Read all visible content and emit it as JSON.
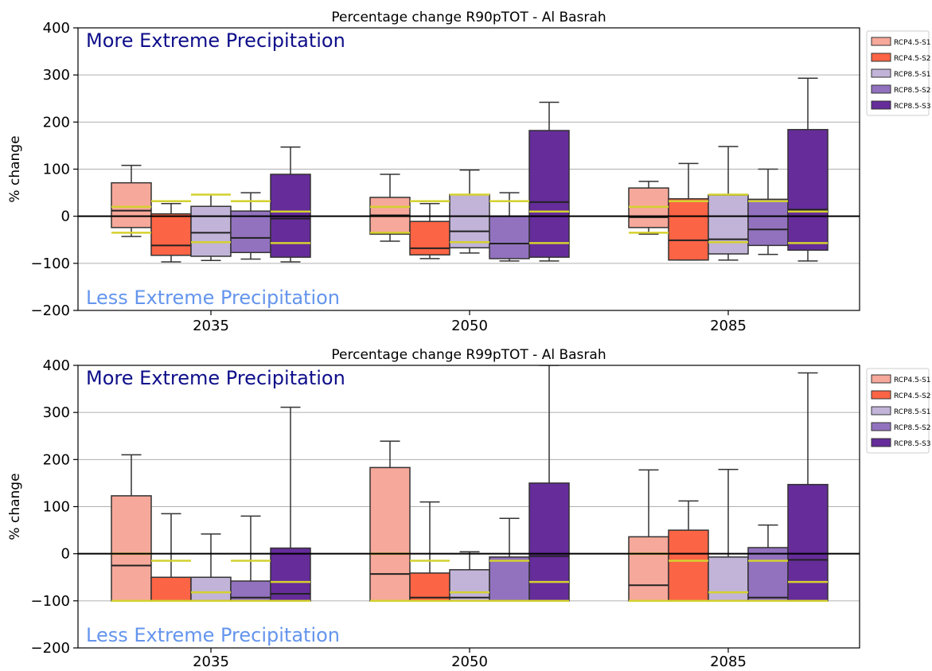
{
  "chart_data": [
    {
      "type": "box",
      "title": "Percentage change R90pTOT - Al Basrah",
      "ylabel": "% change",
      "xlabel": "",
      "ylim": [
        -200,
        400
      ],
      "yticks": [
        -200,
        -100,
        0,
        100,
        200,
        300,
        400
      ],
      "grid": "y",
      "legend_position": "right",
      "categories": [
        "2035",
        "2050",
        "2085"
      ],
      "annotations": {
        "top": "More Extreme Precipitation",
        "bottom": "Less Extreme Precipitation"
      },
      "series": [
        {
          "name": "RCP4.5-S1",
          "color": "#f6a89a",
          "boxes": [
            {
              "whislo": -43,
              "q1": -24,
              "med": 12,
              "q3": 71,
              "whishi": 108,
              "mean_lines": [
                20,
                -35
              ]
            },
            {
              "whislo": -53,
              "q1": -38,
              "med": 2,
              "q3": 40,
              "whishi": 89,
              "mean_lines": [
                20,
                -35
              ]
            },
            {
              "whislo": -38,
              "q1": -24,
              "med": -2,
              "q3": 60,
              "whishi": 74,
              "mean_lines": [
                20,
                -35
              ]
            }
          ]
        },
        {
          "name": "RCP4.5-S2",
          "color": "#fb6445",
          "boxes": [
            {
              "whislo": -97,
              "q1": -83,
              "med": -62,
              "q3": 5,
              "whishi": 27,
              "mean_lines": [
                32
              ]
            },
            {
              "whislo": -90,
              "q1": -82,
              "med": -68,
              "q3": -11,
              "whishi": 27,
              "mean_lines": [
                32
              ]
            },
            {
              "whislo": -93,
              "q1": -93,
              "med": -51,
              "q3": 37,
              "whishi": 112,
              "mean_lines": [
                32
              ]
            }
          ]
        },
        {
          "name": "RCP8.5-S1",
          "color": "#c2b4d8",
          "boxes": [
            {
              "whislo": -94,
              "q1": -85,
              "med": -35,
              "q3": 21,
              "whishi": 46,
              "mean_lines": [
                46,
                -55
              ]
            },
            {
              "whislo": -78,
              "q1": -67,
              "med": -32,
              "q3": 46,
              "whishi": 98,
              "mean_lines": [
                46,
                -55
              ]
            },
            {
              "whislo": -93,
              "q1": -80,
              "med": -49,
              "q3": 45,
              "whishi": 148,
              "mean_lines": [
                46,
                -55
              ]
            }
          ]
        },
        {
          "name": "RCP8.5-S2",
          "color": "#9272bf",
          "boxes": [
            {
              "whislo": -91,
              "q1": -77,
              "med": -46,
              "q3": 11,
              "whishi": 50,
              "mean_lines": [
                32
              ]
            },
            {
              "whislo": -95,
              "q1": -90,
              "med": -58,
              "q3": 0,
              "whishi": 50,
              "mean_lines": [
                32
              ]
            },
            {
              "whislo": -81,
              "q1": -62,
              "med": -28,
              "q3": 36,
              "whishi": 100,
              "mean_lines": [
                32
              ]
            }
          ]
        },
        {
          "name": "RCP8.5-S3",
          "color": "#652c9a",
          "boxes": [
            {
              "whislo": -97,
              "q1": -87,
              "med": -5,
              "q3": 89,
              "whishi": 147,
              "mean_lines": [
                10,
                -57
              ]
            },
            {
              "whislo": -95,
              "q1": -87,
              "med": 30,
              "q3": 182,
              "whishi": 242,
              "mean_lines": [
                10,
                -57
              ]
            },
            {
              "whislo": -95,
              "q1": -72,
              "med": 14,
              "q3": 184,
              "whishi": 293,
              "mean_lines": [
                10,
                -57
              ]
            }
          ]
        }
      ]
    },
    {
      "type": "box",
      "title": "Percentage change R99pTOT - Al Basrah",
      "ylabel": "% change",
      "xlabel": "",
      "ylim": [
        -200,
        400
      ],
      "yticks": [
        -200,
        -100,
        0,
        100,
        200,
        300,
        400
      ],
      "grid": "y",
      "legend_position": "right",
      "categories": [
        "2035",
        "2050",
        "2085"
      ],
      "annotations": {
        "top": "More Extreme Precipitation",
        "bottom": "Less Extreme Precipitation"
      },
      "series": [
        {
          "name": "RCP4.5-S1",
          "color": "#f6a89a",
          "boxes": [
            {
              "whislo": -100,
              "q1": -100,
              "med": -25,
              "q3": 123,
              "whishi": 210,
              "mean_lines": [
                0,
                -100
              ]
            },
            {
              "whislo": -100,
              "q1": -100,
              "med": -43,
              "q3": 183,
              "whishi": 239,
              "mean_lines": [
                0,
                -100
              ]
            },
            {
              "whislo": -100,
              "q1": -100,
              "med": -67,
              "q3": 36,
              "whishi": 178,
              "mean_lines": [
                0,
                -100
              ]
            }
          ]
        },
        {
          "name": "RCP4.5-S2",
          "color": "#fb6445",
          "boxes": [
            {
              "whislo": -100,
              "q1": -100,
              "med": -100,
              "q3": -50,
              "whishi": 85,
              "mean_lines": [
                -15,
                -100
              ]
            },
            {
              "whislo": -100,
              "q1": -100,
              "med": -93,
              "q3": -41,
              "whishi": 110,
              "mean_lines": [
                -15,
                -100
              ]
            },
            {
              "whislo": -100,
              "q1": -100,
              "med": -100,
              "q3": 50,
              "whishi": 112,
              "mean_lines": [
                -15,
                -100
              ]
            }
          ]
        },
        {
          "name": "RCP8.5-S1",
          "color": "#c2b4d8",
          "boxes": [
            {
              "whislo": -100,
              "q1": -100,
              "med": -100,
              "q3": -50,
              "whishi": 42,
              "mean_lines": [
                -82,
                -100
              ]
            },
            {
              "whislo": -100,
              "q1": -100,
              "med": -93,
              "q3": -34,
              "whishi": 4,
              "mean_lines": [
                -82,
                -100
              ]
            },
            {
              "whislo": -100,
              "q1": -100,
              "med": -100,
              "q3": -7,
              "whishi": 179,
              "mean_lines": [
                -82,
                -100
              ]
            }
          ]
        },
        {
          "name": "RCP8.5-S2",
          "color": "#9272bf",
          "boxes": [
            {
              "whislo": -100,
              "q1": -100,
              "med": -93,
              "q3": -58,
              "whishi": 80,
              "mean_lines": [
                -15,
                -100
              ]
            },
            {
              "whislo": -100,
              "q1": -100,
              "med": -100,
              "q3": -7,
              "whishi": 75,
              "mean_lines": [
                -15,
                -100
              ]
            },
            {
              "whislo": -100,
              "q1": -100,
              "med": -93,
              "q3": 13,
              "whishi": 61,
              "mean_lines": [
                -15,
                -100
              ]
            }
          ]
        },
        {
          "name": "RCP8.5-S3",
          "color": "#652c9a",
          "boxes": [
            {
              "whislo": -100,
              "q1": -100,
              "med": -85,
              "q3": 12,
              "whishi": 311,
              "mean_lines": [
                -60,
                -100
              ]
            },
            {
              "whislo": -100,
              "q1": -100,
              "med": -5,
              "q3": 150,
              "whishi": 410,
              "mean_lines": [
                -60,
                -100
              ]
            },
            {
              "whislo": -100,
              "q1": -100,
              "med": -13,
              "q3": 147,
              "whishi": 384,
              "mean_lines": [
                -60,
                -100
              ]
            }
          ]
        }
      ]
    }
  ]
}
